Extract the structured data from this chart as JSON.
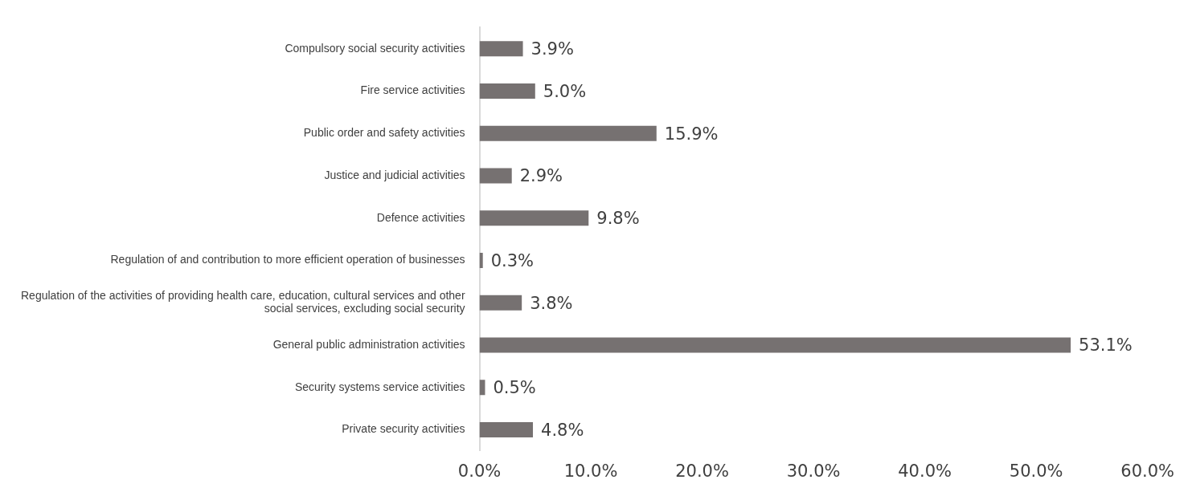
{
  "chart_data": {
    "type": "bar",
    "orientation": "horizontal",
    "categories": [
      "Compulsory social security activities",
      "Fire service activities",
      "Public order and safety activities",
      "Justice and judicial activities",
      "Defence activities",
      "Regulation of and contribution to more efficient operation of businesses",
      "Regulation of the activities of providing health care, education, cultural services and other social services, excluding social security",
      "General public administration activities",
      "Security systems service activities",
      "Private security activities"
    ],
    "values": [
      3.9,
      5.0,
      15.9,
      2.9,
      9.8,
      0.3,
      3.8,
      53.1,
      0.5,
      4.8
    ],
    "value_labels": [
      "3.9%",
      "5.0%",
      "15.9%",
      "2.9%",
      "9.8%",
      "0.3%",
      "3.8%",
      "53.1%",
      "0.5%",
      "4.8%"
    ],
    "color": "#767171",
    "xlim": [
      0,
      60
    ],
    "xticks": [
      {
        "value": 0,
        "label": "0.0%"
      },
      {
        "value": 10,
        "label": "10.0%"
      },
      {
        "value": 20,
        "label": "20.0%"
      },
      {
        "value": 30,
        "label": "30.0%"
      },
      {
        "value": 40,
        "label": "40.0%"
      },
      {
        "value": 50,
        "label": "50.0%"
      },
      {
        "value": 60,
        "label": "60.0%"
      }
    ],
    "grid": false,
    "legend": false
  }
}
